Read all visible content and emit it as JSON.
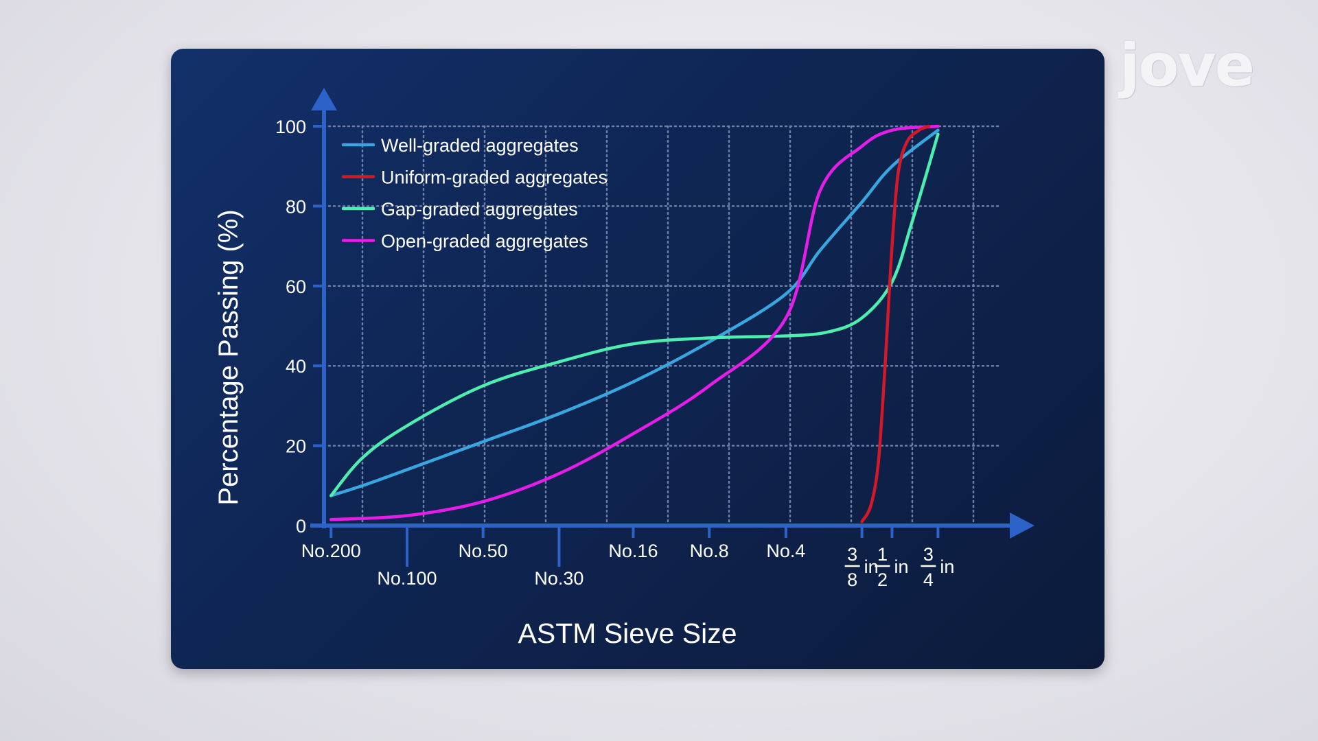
{
  "brand": {
    "logo_text": "jove"
  },
  "colors": {
    "card_bg": "#0f2654",
    "axis": "#2d62c9",
    "grid": "#6b7fa8",
    "text": "#ffffff"
  },
  "chart_data": {
    "type": "line",
    "xlabel": "ASTM Sieve Size",
    "ylabel": "Percentage Passing (%)",
    "ylim": [
      0,
      100
    ],
    "yticks": [
      0,
      20,
      40,
      60,
      80,
      100
    ],
    "grid": true,
    "legend_position": "top-left",
    "x_scale": "log (sieve opening, mm)",
    "x_ticks": [
      {
        "key": "no200",
        "label": "No.200",
        "size_mm": 0.075,
        "row": 1
      },
      {
        "key": "no100",
        "label": "No.100",
        "size_mm": 0.15,
        "row": 2
      },
      {
        "key": "no50",
        "label": "No.50",
        "size_mm": 0.3,
        "row": 1
      },
      {
        "key": "no30",
        "label": "No.30",
        "size_mm": 0.6,
        "row": 2
      },
      {
        "key": "no16",
        "label": "No.16",
        "size_mm": 1.18,
        "row": 1
      },
      {
        "key": "no8",
        "label": "No.8",
        "size_mm": 2.36,
        "row": 1
      },
      {
        "key": "no4",
        "label": "No.4",
        "size_mm": 4.75,
        "row": 1
      },
      {
        "key": "in38",
        "numerator": "3",
        "denominator": "8",
        "unit": "in",
        "size_mm": 9.5,
        "row": 1
      },
      {
        "key": "in12",
        "numerator": "1",
        "denominator": "2",
        "unit": "in",
        "size_mm": 12.5,
        "row": 1
      },
      {
        "key": "in34",
        "numerator": "3",
        "denominator": "4",
        "unit": "in",
        "size_mm": 19.0,
        "row": 1
      }
    ],
    "series": [
      {
        "name": "Well-graded aggregates",
        "color": "#3aa6df",
        "x": [
          0.075,
          0.1,
          0.15,
          0.3,
          0.6,
          1.18,
          2.36,
          4.75,
          6.5,
          9.5,
          12.5,
          19.0
        ],
        "y": [
          7.5,
          10,
          14,
          21,
          28,
          36,
          46,
          58,
          69,
          81,
          90,
          99
        ]
      },
      {
        "name": "Uniform-graded aggregates",
        "color": "#d4182a",
        "x": [
          9.5,
          10.3,
          11.0,
          11.6,
          12.1,
          12.5,
          13.2,
          14.3,
          16.0,
          17.5
        ],
        "y": [
          1,
          5,
          15,
          35,
          55,
          70,
          88,
          96,
          99,
          100
        ]
      },
      {
        "name": "Gap-graded aggregates",
        "color": "#4deeb0",
        "x": [
          0.075,
          0.1,
          0.15,
          0.3,
          0.6,
          1.18,
          2.36,
          4.75,
          7.0,
          9.5,
          12.5,
          15.0,
          19.0
        ],
        "y": [
          7.5,
          17,
          25,
          35,
          41,
          45.5,
          47,
          47.5,
          48.5,
          52,
          61,
          76,
          98
        ]
      },
      {
        "name": "Open-graded aggregates",
        "color": "#e41ee6",
        "x": [
          0.075,
          0.15,
          0.3,
          0.6,
          1.18,
          2.36,
          4.75,
          6.5,
          9.5,
          12.5,
          19.0
        ],
        "y": [
          1.5,
          2.5,
          6,
          13,
          23,
          35,
          52,
          84,
          95,
          99,
          100
        ]
      }
    ]
  }
}
